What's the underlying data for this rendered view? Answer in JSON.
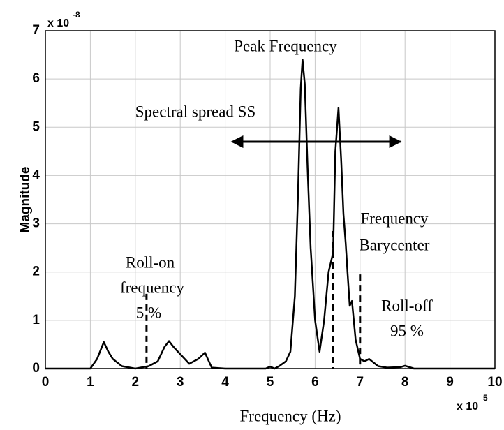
{
  "chart_data": {
    "type": "line",
    "x_label": "Frequency (Hz)",
    "y_label": "Magnitude",
    "x_multiplier": {
      "base": "x 10",
      "exponent": "5"
    },
    "y_multiplier": {
      "base": "x 10",
      "exponent": "-8"
    },
    "x": [
      0,
      1.0,
      1.15,
      1.3,
      1.4,
      1.5,
      1.7,
      2.0,
      2.3,
      2.5,
      2.65,
      2.75,
      2.85,
      3.0,
      3.2,
      3.4,
      3.55,
      3.7,
      4.0,
      4.9,
      5.0,
      5.1,
      5.2,
      5.35,
      5.45,
      5.55,
      5.62,
      5.68,
      5.72,
      5.77,
      5.83,
      5.9,
      6.0,
      6.1,
      6.2,
      6.3,
      6.4,
      6.45,
      6.52,
      6.58,
      6.63,
      6.68,
      6.72,
      6.77,
      6.82,
      6.9,
      7.0,
      7.1,
      7.2,
      7.4,
      7.6,
      7.9,
      8.0,
      8.2,
      10
    ],
    "values": [
      0,
      0,
      0.2,
      0.55,
      0.35,
      0.2,
      0.05,
      0,
      0.05,
      0.15,
      0.45,
      0.57,
      0.45,
      0.3,
      0.1,
      0.2,
      0.33,
      0.02,
      0,
      0,
      0.04,
      0,
      0.05,
      0.15,
      0.35,
      1.5,
      3.6,
      5.8,
      6.4,
      5.9,
      4.2,
      2.5,
      1.0,
      0.35,
      1.0,
      2.0,
      2.4,
      4.5,
      5.4,
      4.3,
      3.2,
      2.6,
      2.0,
      1.3,
      1.4,
      0.6,
      0.2,
      0.15,
      0.2,
      0.05,
      0.02,
      0.03,
      0.06,
      0,
      0
    ],
    "color": "#000000",
    "xlim": [
      0,
      10
    ],
    "xticks": [
      0,
      1,
      2,
      3,
      4,
      5,
      6,
      7,
      8,
      9,
      10
    ],
    "ylim": [
      0,
      7
    ],
    "yticks": [
      0,
      1,
      2,
      3,
      4,
      5,
      6,
      7
    ],
    "grid": true,
    "markers": [
      {
        "x": 2.25,
        "y": 1.55
      },
      {
        "x": 6.4,
        "y": 2.85
      },
      {
        "x": 7.0,
        "y": 1.95
      }
    ],
    "spread_arrow": {
      "x": [
        4.15,
        7.9
      ],
      "y": 4.7
    },
    "annotations": [
      "Peak Frequency",
      "Spectral spread SS",
      "Frequency",
      "Barycenter",
      "Roll-on",
      "frequency",
      "5 %",
      "Roll-off",
      "95 %"
    ]
  }
}
